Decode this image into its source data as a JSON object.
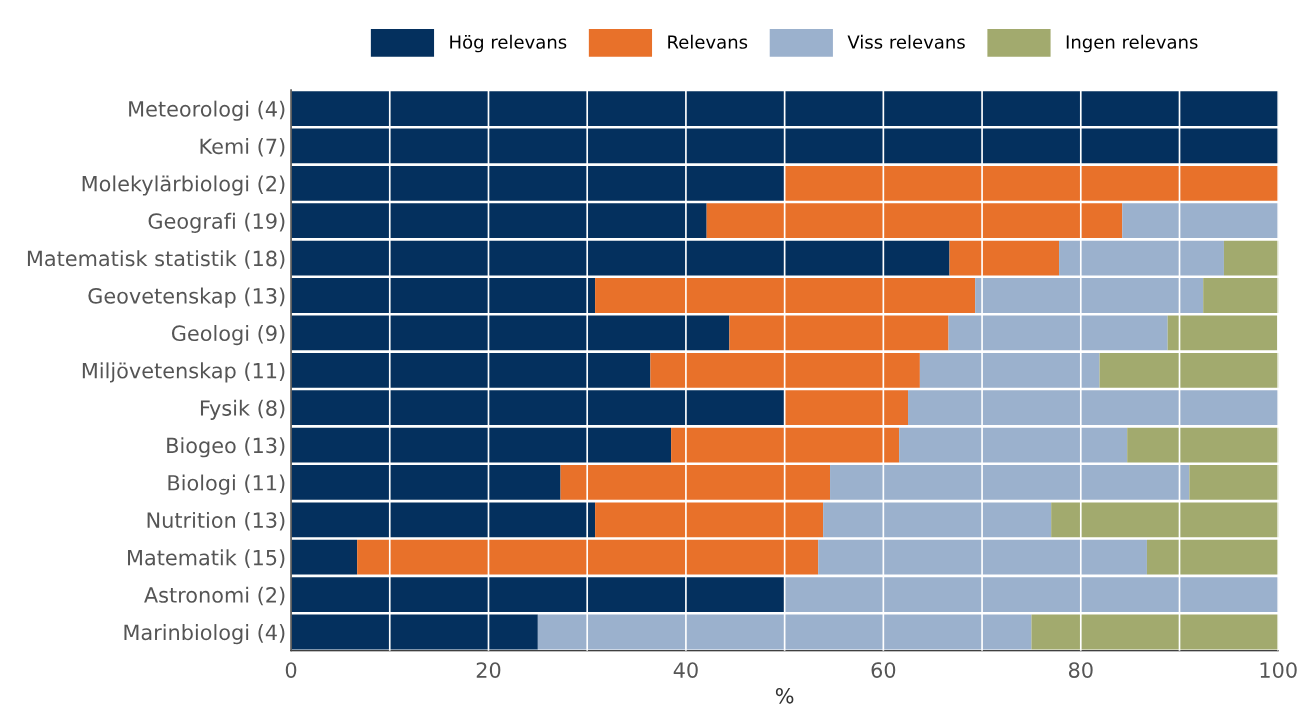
{
  "chart_data": {
    "type": "bar",
    "orientation": "horizontal",
    "stacked": true,
    "xlabel": "%",
    "legend": "top",
    "grid": "x",
    "categories": [
      "Meteorologi (4)",
      "Kemi (7)",
      "Molekylärbiologi (2)",
      "Geografi (19)",
      "Matematisk statistik (18)",
      "Geovetenskap (13)",
      "Geologi (9)",
      "Miljövetenskap (11)",
      "Fysik (8)",
      "Biogeo (13)",
      "Biologi (11)",
      "Nutrition (13)",
      "Matematik (15)",
      "Astronomi (2)",
      "Marinbiologi (4)"
    ],
    "xlim": [
      0,
      100
    ],
    "xticks": [
      0,
      {
        "value": 10,
        "label": null
      },
      20,
      {
        "value": 30,
        "label": null
      },
      40,
      {
        "value": 50,
        "label": null
      },
      60,
      {
        "value": 70,
        "label": null
      },
      80,
      {
        "value": 90,
        "label": null
      },
      100
    ],
    "series": [
      {
        "name": "Hög relevans",
        "color": "#04305e",
        "values": [
          100,
          100,
          50,
          42.1,
          66.7,
          30.8,
          44.4,
          36.4,
          50,
          38.5,
          27.3,
          30.8,
          6.7,
          50,
          25
        ]
      },
      {
        "name": "Relevans",
        "color": "#e8712a",
        "values": [
          0,
          0,
          50,
          42.1,
          11.1,
          38.5,
          22.2,
          27.3,
          12.5,
          23.1,
          27.3,
          23.1,
          46.7,
          0,
          0
        ]
      },
      {
        "name": "Viss relevans",
        "color": "#9bb1cd",
        "values": [
          0,
          0,
          0,
          15.8,
          16.7,
          23.1,
          22.2,
          18.2,
          37.5,
          23.1,
          36.4,
          23.1,
          33.3,
          50,
          50
        ]
      },
      {
        "name": "Ingen relevans",
        "color": "#a2aa6e",
        "values": [
          0,
          0,
          0,
          0,
          5.6,
          7.7,
          11.1,
          18.2,
          0,
          15.4,
          9.1,
          23.1,
          13.3,
          0,
          25
        ]
      }
    ]
  }
}
